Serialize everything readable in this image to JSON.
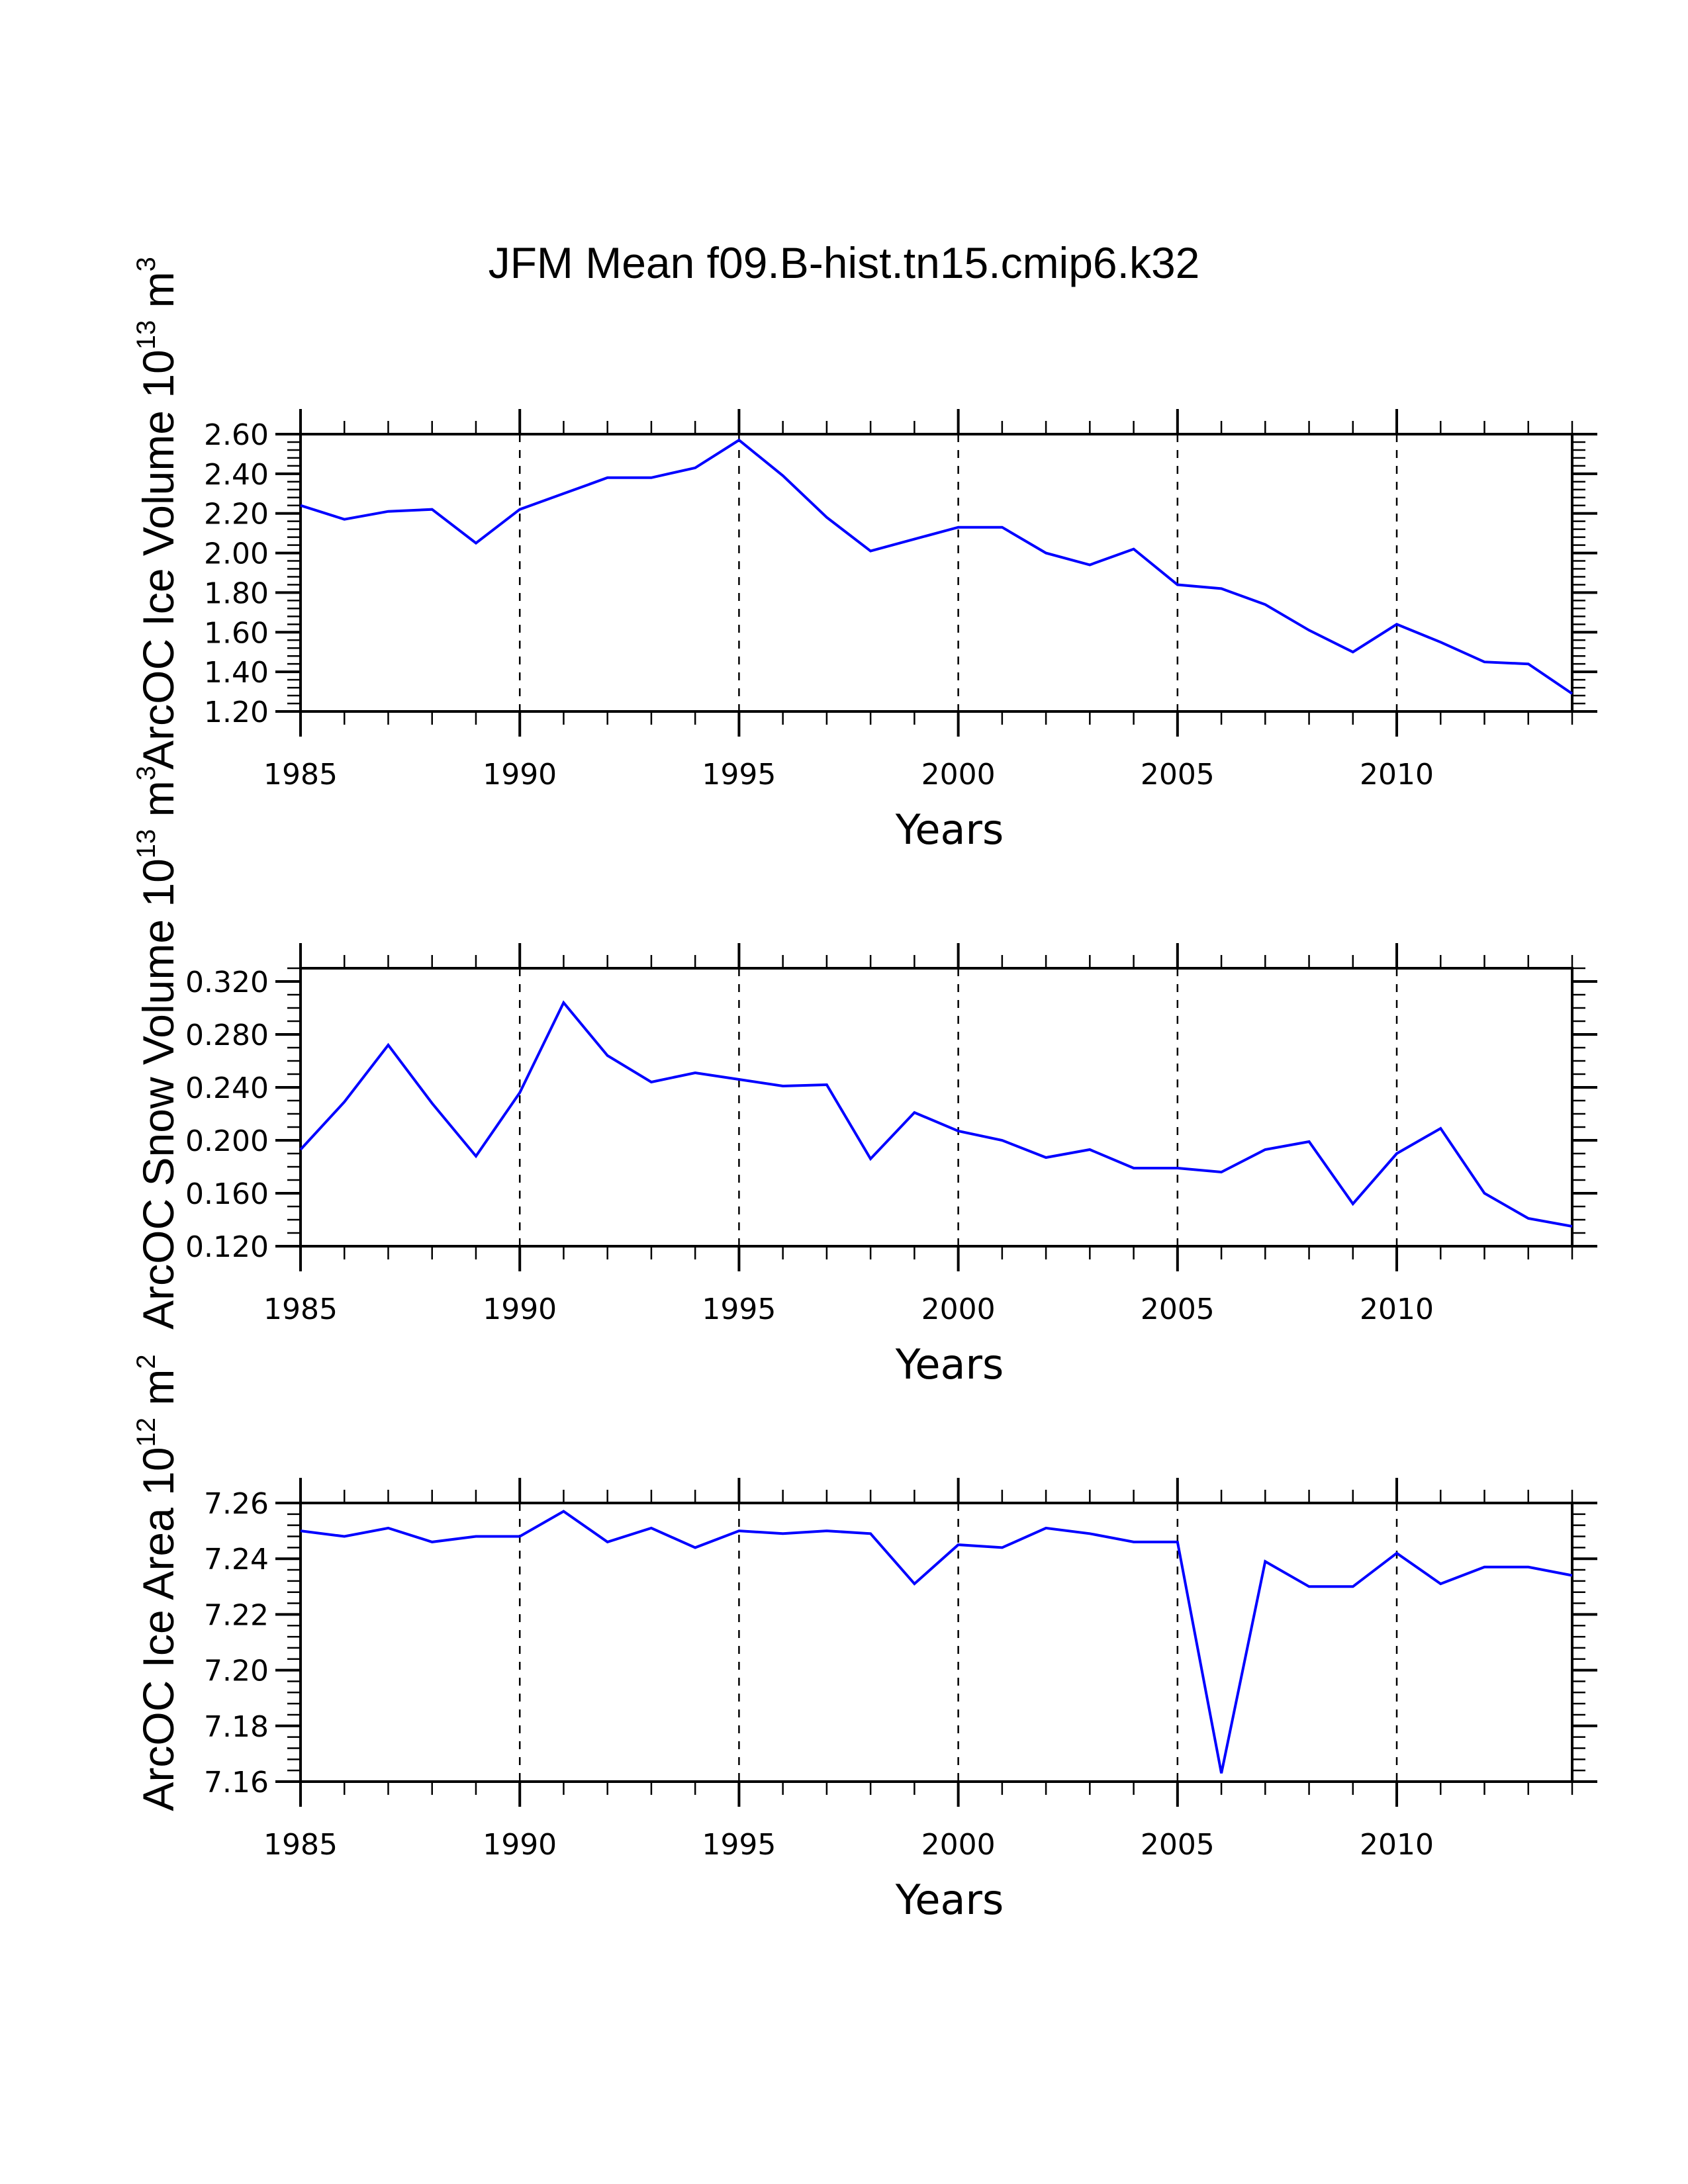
{
  "title": "JFM Mean f09.B-hist.tn15.cmip6.k32",
  "chart_data": [
    {
      "type": "line",
      "title": "",
      "xlabel": "Years",
      "ylabel": {
        "text": "ArcOC Ice Volume 10",
        "exp": "13",
        "unit": " m",
        "unit_exp": "3"
      },
      "xlim": [
        1985,
        2014
      ],
      "ylim": [
        1.2,
        2.6
      ],
      "x_major_ticks": [
        1985,
        1990,
        1995,
        2000,
        2005,
        2010
      ],
      "y_major_ticks": [
        1.2,
        1.4,
        1.6,
        1.8,
        2.0,
        2.2,
        2.4,
        2.6
      ],
      "y_tick_labels": [
        "1.20",
        "1.40",
        "1.60",
        "1.80",
        "2.00",
        "2.20",
        "2.40",
        "2.60"
      ],
      "y_minor_step": 0.04,
      "grid": "dashed vertical lines at major x ticks",
      "line_color": "#0000ff",
      "series": [
        {
          "name": "ArcOC Ice Volume",
          "x": [
            1985,
            1986,
            1987,
            1988,
            1989,
            1990,
            1991,
            1992,
            1993,
            1994,
            1995,
            1996,
            1997,
            1998,
            1999,
            2000,
            2001,
            2002,
            2003,
            2004,
            2005,
            2006,
            2007,
            2008,
            2009,
            2010,
            2011,
            2012,
            2013,
            2014
          ],
          "values": [
            2.24,
            2.17,
            2.21,
            2.22,
            2.05,
            2.22,
            2.3,
            2.38,
            2.38,
            2.43,
            2.57,
            2.39,
            2.18,
            2.01,
            2.07,
            2.13,
            2.13,
            2.0,
            1.94,
            2.02,
            1.84,
            1.82,
            1.74,
            1.61,
            1.5,
            1.64,
            1.55,
            1.45,
            1.44,
            1.29
          ]
        }
      ]
    },
    {
      "type": "line",
      "title": "",
      "xlabel": "Years",
      "ylabel": {
        "text": "ArcOC Snow Volume 10",
        "exp": "13",
        "unit": " m",
        "unit_exp": "3"
      },
      "xlim": [
        1985,
        2014
      ],
      "ylim": [
        0.12,
        0.33
      ],
      "x_major_ticks": [
        1985,
        1990,
        1995,
        2000,
        2005,
        2010
      ],
      "y_major_ticks": [
        0.12,
        0.16,
        0.2,
        0.24,
        0.28,
        0.32
      ],
      "y_tick_labels": [
        "0.120",
        "0.160",
        "0.200",
        "0.240",
        "0.280",
        "0.320"
      ],
      "y_minor_step": 0.01,
      "grid": "dashed vertical lines at major x ticks",
      "line_color": "#0000ff",
      "series": [
        {
          "name": "ArcOC Snow Volume",
          "x": [
            1985,
            1986,
            1987,
            1988,
            1989,
            1990,
            1991,
            1992,
            1993,
            1994,
            1995,
            1996,
            1997,
            1998,
            1999,
            2000,
            2001,
            2002,
            2003,
            2004,
            2005,
            2006,
            2007,
            2008,
            2009,
            2010,
            2011,
            2012,
            2013,
            2014
          ],
          "values": [
            0.193,
            0.229,
            0.272,
            0.228,
            0.188,
            0.236,
            0.304,
            0.264,
            0.244,
            0.251,
            0.246,
            0.241,
            0.242,
            0.186,
            0.221,
            0.207,
            0.2,
            0.187,
            0.193,
            0.179,
            0.179,
            0.176,
            0.193,
            0.199,
            0.152,
            0.19,
            0.209,
            0.16,
            0.141,
            0.135
          ]
        }
      ]
    },
    {
      "type": "line",
      "title": "",
      "xlabel": "Years",
      "ylabel": {
        "text": "ArcOC Ice Area 10",
        "exp": "12",
        "unit": " m",
        "unit_exp": "2"
      },
      "xlim": [
        1985,
        2014
      ],
      "ylim": [
        7.16,
        7.26
      ],
      "x_major_ticks": [
        1985,
        1990,
        1995,
        2000,
        2005,
        2010
      ],
      "y_major_ticks": [
        7.16,
        7.18,
        7.2,
        7.22,
        7.24,
        7.26
      ],
      "y_tick_labels": [
        "7.16",
        "7.18",
        "7.20",
        "7.22",
        "7.24",
        "7.26"
      ],
      "y_minor_step": 0.004,
      "grid": "dashed vertical lines at major x ticks",
      "line_color": "#0000ff",
      "series": [
        {
          "name": "ArcOC Ice Area",
          "x": [
            1985,
            1986,
            1987,
            1988,
            1989,
            1990,
            1991,
            1992,
            1993,
            1994,
            1995,
            1996,
            1997,
            1998,
            1999,
            2000,
            2001,
            2002,
            2003,
            2004,
            2005,
            2006,
            2007,
            2008,
            2009,
            2010,
            2011,
            2012,
            2013,
            2014
          ],
          "values": [
            7.25,
            7.248,
            7.251,
            7.246,
            7.248,
            7.248,
            7.257,
            7.246,
            7.251,
            7.244,
            7.25,
            7.249,
            7.25,
            7.249,
            7.231,
            7.245,
            7.244,
            7.251,
            7.249,
            7.246,
            7.246,
            7.163,
            7.239,
            7.23,
            7.23,
            7.242,
            7.231,
            7.237,
            7.237,
            7.234
          ]
        }
      ]
    }
  ]
}
